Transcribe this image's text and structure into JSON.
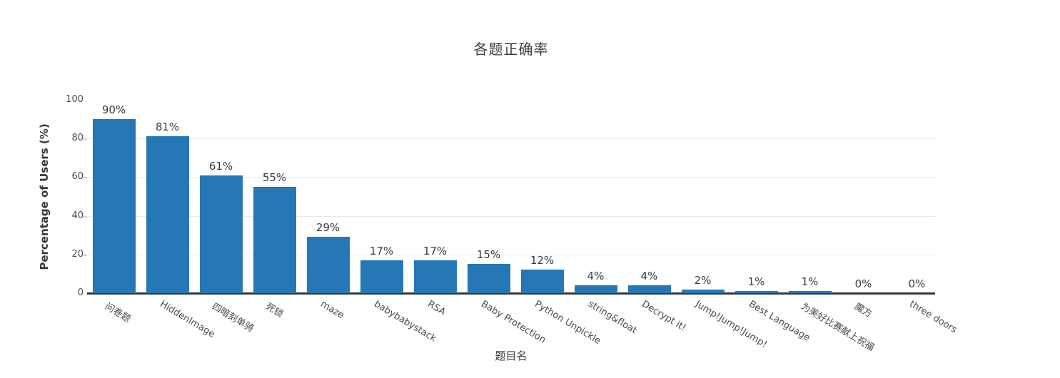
{
  "chart_data": {
    "type": "bar",
    "title": "各题正确率",
    "xlabel": "题目名",
    "ylabel": "Percentage of Users (%)",
    "categories": [
      "问卷题",
      "HiddenImage",
      "四暗刻单骑",
      "死锁",
      "maze",
      "babybabystack",
      "RSA",
      "Baby Protection",
      "Python Unpickle",
      "string&float",
      "Decrypt it!",
      "Jump!Jump!Jump!",
      "Best Language",
      "为美好比赛献上祝福",
      "魔方",
      "three doors"
    ],
    "values": [
      90,
      81,
      61,
      55,
      29,
      17,
      17,
      15,
      12,
      4,
      4,
      2,
      1,
      1,
      0,
      0
    ],
    "value_labels": [
      "90%",
      "81%",
      "61%",
      "55%",
      "29%",
      "17%",
      "17%",
      "15%",
      "12%",
      "4%",
      "4%",
      "2%",
      "1%",
      "1%",
      "0%",
      "0%"
    ],
    "ylim": [
      0,
      100
    ],
    "yticks": [
      0,
      20,
      40,
      60,
      80,
      100
    ],
    "gridline_ticks": [
      20,
      40,
      60,
      80
    ],
    "grid_on": true,
    "legend": "none",
    "colors": {
      "bar_fill": "#2578b5",
      "axis_line": "#37373a",
      "gridline": "#e9e9e9",
      "text": "#3b3b3b"
    }
  }
}
